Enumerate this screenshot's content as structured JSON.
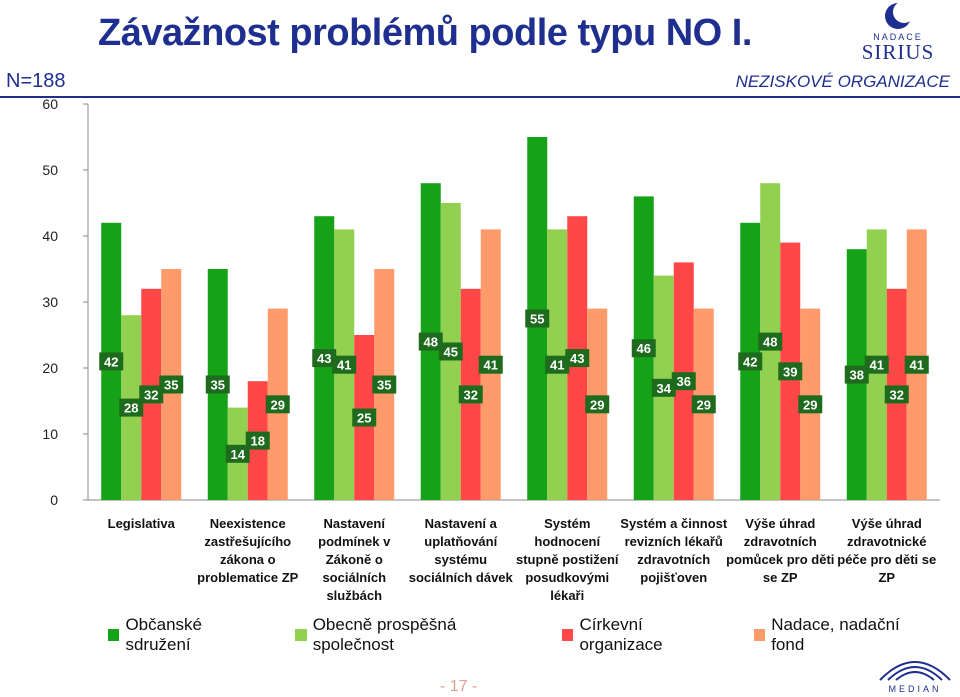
{
  "header": {
    "title": "Závažnost problémů podle typu NO I.",
    "n_label": "N=188",
    "subtitle": "NEZISKOVÉ ORGANIZACE"
  },
  "logo_top": {
    "line1": "NADACE",
    "line2": "SIRIUS"
  },
  "footer": {
    "page": "- 17 -",
    "logo_text": "MEDIAN"
  },
  "colors": {
    "obcanske": "#16a216",
    "obecne": "#92d050",
    "cirkevni": "#ff4747",
    "nadace": "#ff9a6a",
    "label_bg": "#1e6b1e"
  },
  "chart_data": {
    "type": "bar",
    "ylim": [
      0,
      60
    ],
    "yticks": [
      "0",
      "10",
      "20",
      "30",
      "40",
      "50",
      "60"
    ],
    "grid": false,
    "legend": "bottom",
    "categories": [
      "Legislativa",
      "Neexistence zastřešujícího zákona o problematice ZP",
      "Nastavení podmínek v Zákoně o sociálních službách",
      "Nastavení a uplatňování systému sociálních dávek",
      "Systém hodnocení stupně postižení posudkovými lékaři",
      "Systém a činnost revizních lékařů zdravotních pojišťoven",
      "Výše úhrad zdravotních pomůcek pro děti se ZP",
      "Výše úhrad zdravotnické péče pro děti se ZP"
    ],
    "category_lines": [
      [
        "Legislativa"
      ],
      [
        "Neexistence",
        "zastřešujícího",
        "zákona o",
        "problematice ZP"
      ],
      [
        "Nastavení",
        "podmínek v",
        "Zákoně o",
        "sociálních",
        "službách"
      ],
      [
        "Nastavení a",
        "uplatňování",
        "systému",
        "sociálních dávek"
      ],
      [
        "Systém",
        "hodnocení",
        "stupně postižení",
        "posudkovými",
        "lékaři"
      ],
      [
        "Systém a činnost",
        "revizních lékařů",
        "zdravotních",
        "pojišťoven"
      ],
      [
        "Výše úhrad",
        "zdravotních",
        "pomůcek pro děti",
        "se ZP"
      ],
      [
        "Výše úhrad",
        "zdravotnické",
        "péče pro děti se",
        "ZP"
      ]
    ],
    "series": [
      {
        "name": "Občanské sdružení",
        "color": "#16a216",
        "values": [
          42,
          35,
          43,
          48,
          55,
          46,
          42,
          38
        ]
      },
      {
        "name": "Obecně prospěšná společnost",
        "color": "#92d050",
        "values": [
          28,
          14,
          41,
          45,
          41,
          34,
          48,
          41
        ]
      },
      {
        "name": "Církevní organizace",
        "color": "#ff4747",
        "values": [
          32,
          18,
          25,
          32,
          43,
          36,
          39,
          32
        ]
      },
      {
        "name": "Nadace, nadační fond",
        "color": "#ff9a6a",
        "values": [
          35,
          29,
          35,
          41,
          29,
          29,
          29,
          41
        ]
      }
    ]
  }
}
